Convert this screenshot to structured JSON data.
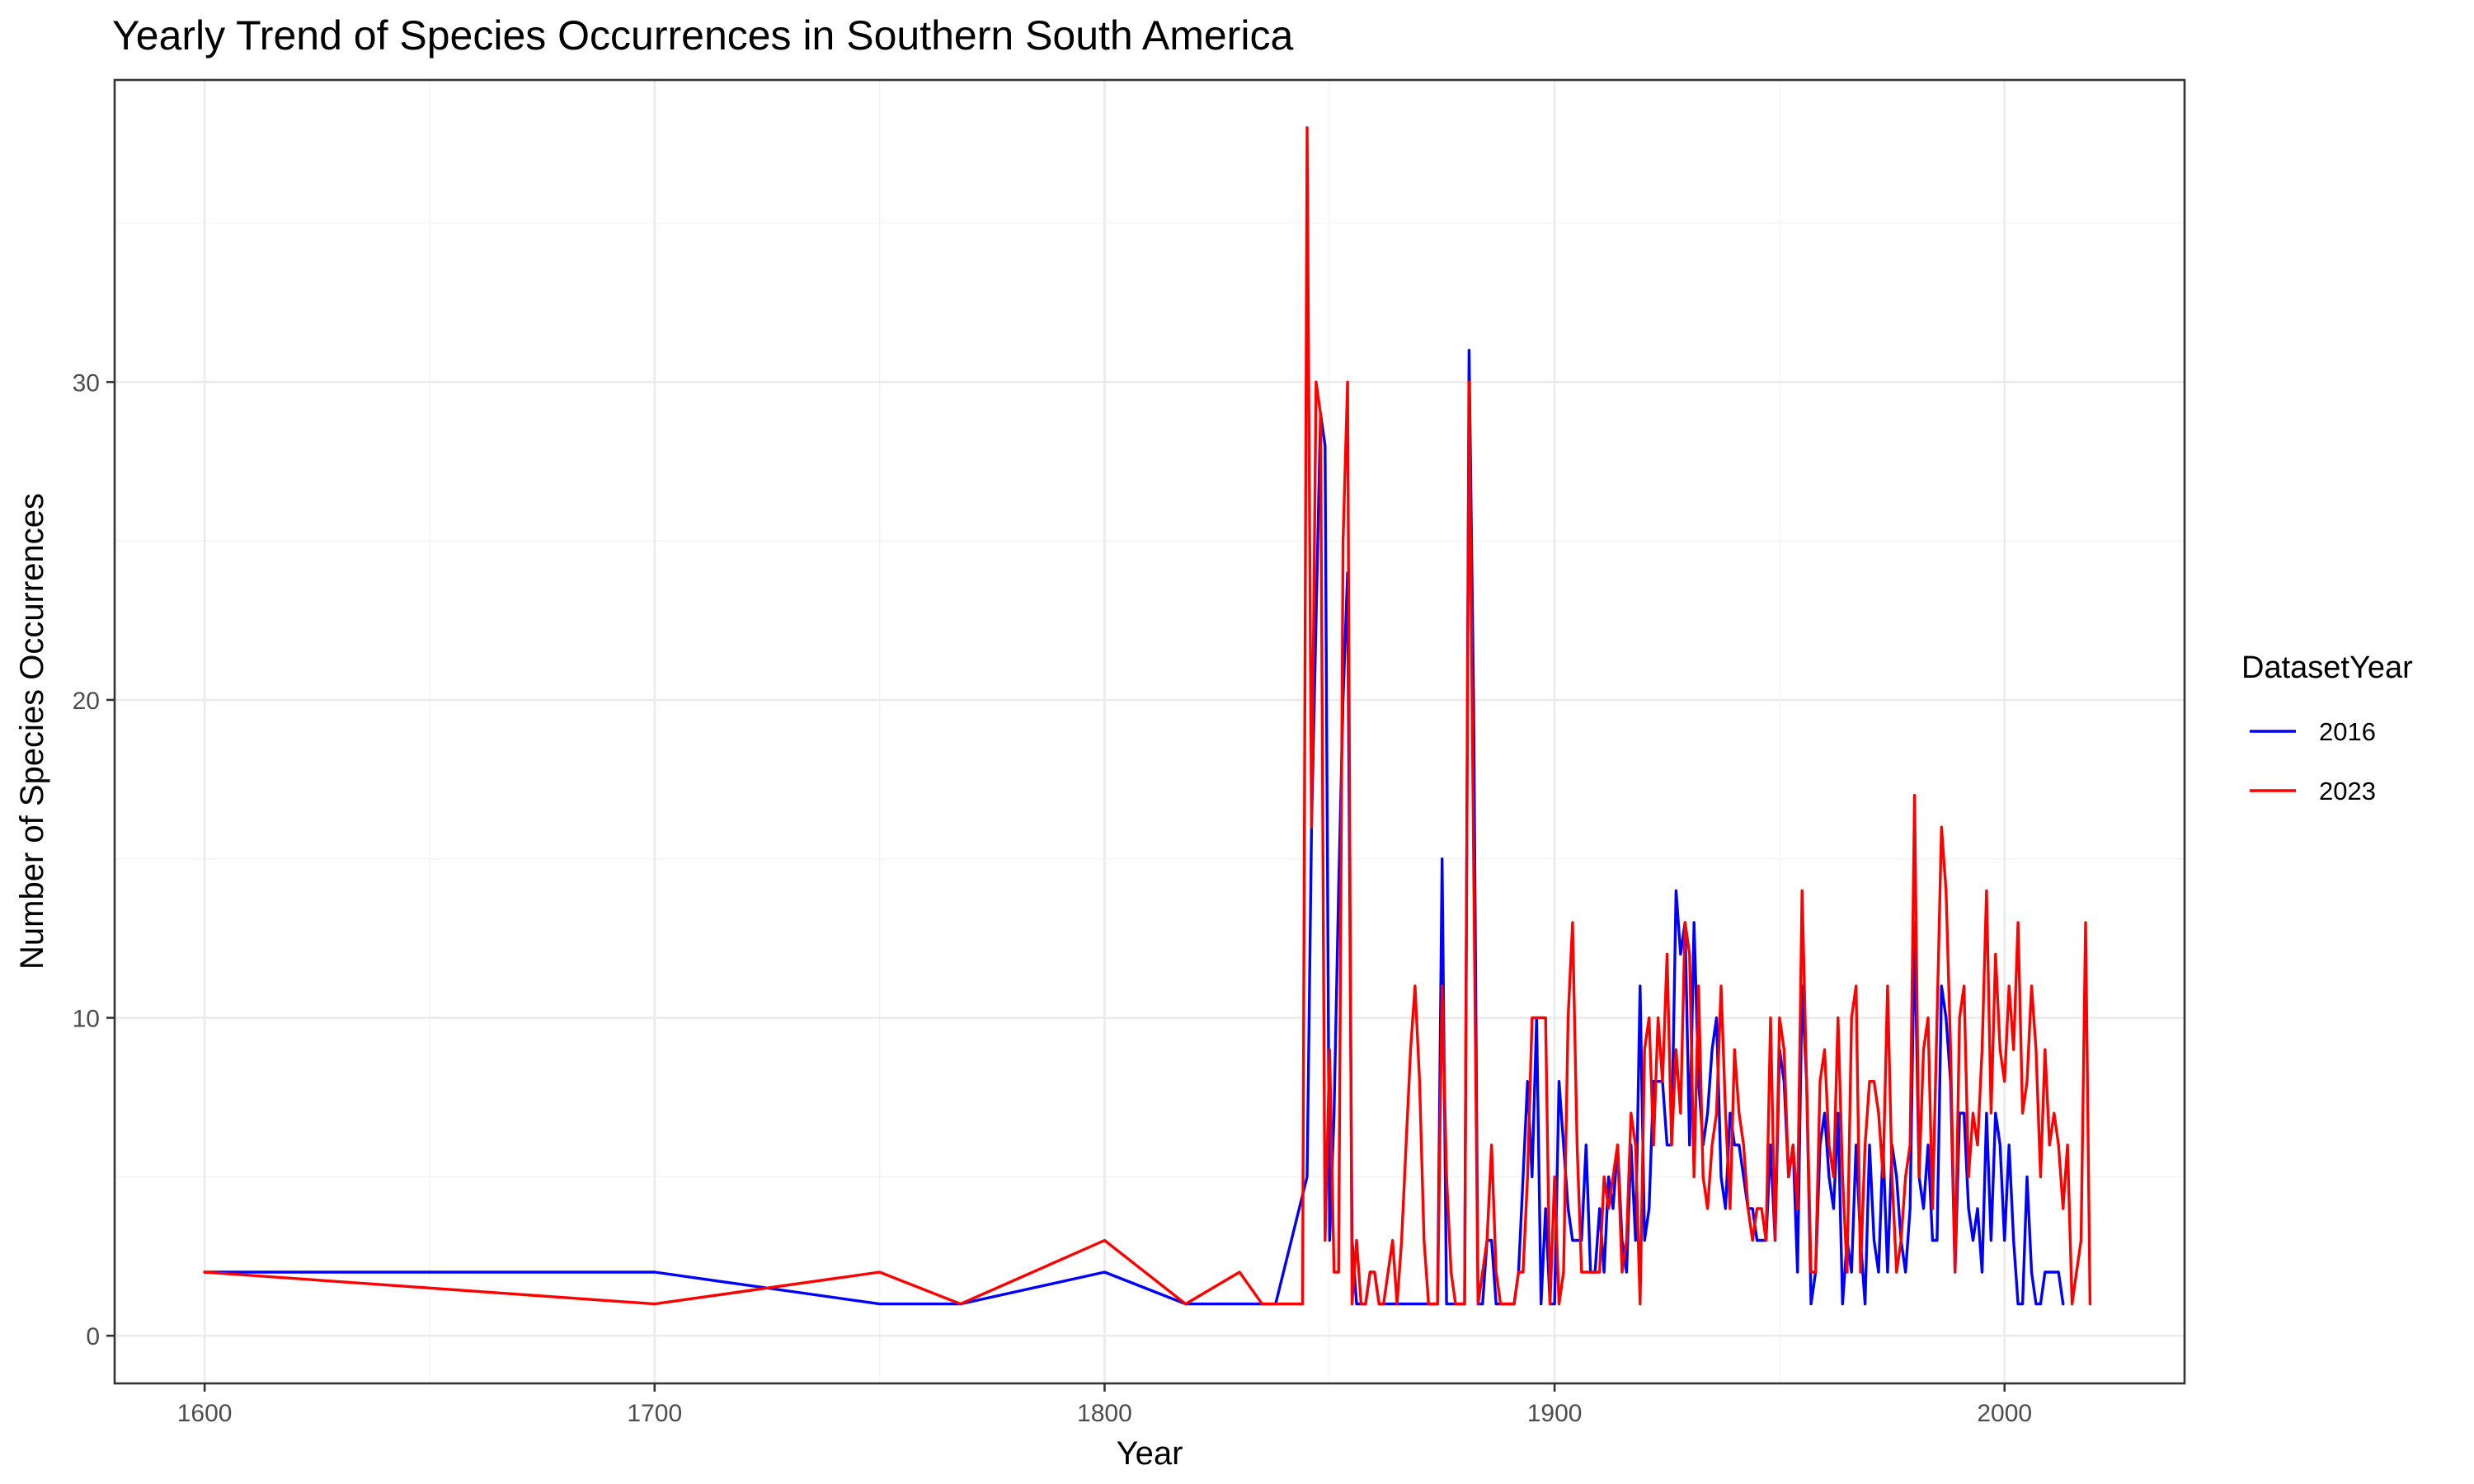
{
  "chart_data": {
    "type": "line",
    "title": "Yearly Trend of Species Occurrences in Southern South America",
    "xlabel": "Year",
    "ylabel": "Number of Species Occurrences",
    "xlim": [
      1580,
      2040
    ],
    "ylim": [
      -1.5,
      39.5
    ],
    "xticks": [
      1600,
      1700,
      1800,
      1900,
      2000
    ],
    "yticks": [
      0,
      10,
      20,
      30
    ],
    "grid": true,
    "legend": {
      "title": "DatasetYear",
      "position": "right"
    },
    "series": [
      {
        "name": "2016",
        "color": "#0000ff",
        "x": [
          1600,
          1700,
          1750,
          1768,
          1800,
          1818,
          1838,
          1845,
          1846,
          1848,
          1849,
          1850,
          1851,
          1852,
          1853,
          1854,
          1855,
          1856,
          1857,
          1858,
          1859,
          1860,
          1861,
          1862,
          1863,
          1864,
          1865,
          1866,
          1867,
          1868,
          1869,
          1870,
          1871,
          1872,
          1873,
          1874,
          1875,
          1876,
          1877,
          1878,
          1879,
          1880,
          1881,
          1882,
          1883,
          1884,
          1885,
          1886,
          1887,
          1888,
          1889,
          1890,
          1891,
          1892,
          1893,
          1894,
          1895,
          1896,
          1897,
          1898,
          1899,
          1900,
          1901,
          1902,
          1903,
          1904,
          1905,
          1906,
          1907,
          1908,
          1909,
          1910,
          1911,
          1912,
          1913,
          1914,
          1915,
          1916,
          1917,
          1918,
          1919,
          1920,
          1921,
          1922,
          1923,
          1924,
          1925,
          1926,
          1927,
          1928,
          1929,
          1930,
          1931,
          1932,
          1933,
          1934,
          1935,
          1936,
          1937,
          1938,
          1939,
          1940,
          1941,
          1942,
          1943,
          1944,
          1945,
          1946,
          1947,
          1948,
          1949,
          1950,
          1951,
          1952,
          1953,
          1954,
          1955,
          1956,
          1957,
          1958,
          1959,
          1960,
          1961,
          1962,
          1963,
          1964,
          1965,
          1966,
          1967,
          1968,
          1969,
          1970,
          1971,
          1972,
          1973,
          1974,
          1975,
          1976,
          1977,
          1978,
          1979,
          1980,
          1981,
          1982,
          1983,
          1984,
          1985,
          1986,
          1987,
          1988,
          1989,
          1990,
          1991,
          1992,
          1993,
          1994,
          1995,
          1996,
          1997,
          1998,
          1999,
          2000,
          2001,
          2002,
          2003,
          2004,
          2005,
          2006,
          2007,
          2008,
          2009,
          2010,
          2011,
          2012,
          2013
        ],
        "y": [
          2,
          2,
          1,
          1,
          2,
          1,
          1,
          5,
          16,
          29,
          28,
          3,
          7,
          14,
          20,
          24,
          3,
          1,
          1,
          1,
          2,
          2,
          1,
          1,
          1,
          1,
          1,
          1,
          1,
          1,
          1,
          1,
          1,
          1,
          1,
          1,
          15,
          1,
          1,
          1,
          1,
          1,
          31,
          20,
          1,
          1,
          3,
          3,
          1,
          1,
          1,
          1,
          1,
          2,
          5,
          8,
          5,
          10,
          1,
          4,
          1,
          1,
          8,
          6,
          4,
          3,
          3,
          3,
          6,
          2,
          2,
          4,
          2,
          5,
          4,
          6,
          3,
          2,
          6,
          3,
          11,
          3,
          4,
          8,
          8,
          8,
          6,
          6,
          14,
          12,
          13,
          6,
          13,
          8,
          6,
          7,
          9,
          10,
          5,
          4,
          7,
          6,
          6,
          5,
          4,
          4,
          3,
          3,
          3,
          6,
          3,
          9,
          8,
          5,
          6,
          2,
          11,
          8,
          1,
          2,
          6,
          7,
          5,
          4,
          7,
          1,
          3,
          2,
          6,
          3,
          1,
          6,
          3,
          2,
          6,
          2,
          6,
          5,
          3,
          2,
          4,
          13,
          5,
          4,
          6,
          3,
          3,
          11,
          10,
          8,
          2,
          7,
          7,
          4,
          3,
          4,
          2,
          7,
          3,
          7,
          6,
          3,
          6,
          3,
          1,
          1,
          5,
          2,
          1,
          1,
          2,
          2,
          2,
          2,
          1
        ]
      },
      {
        "name": "2023",
        "color": "#ff0000",
        "x": [
          1600,
          1700,
          1750,
          1768,
          1800,
          1818,
          1830,
          1835,
          1838,
          1844,
          1845,
          1846,
          1847,
          1848,
          1849,
          1850,
          1851,
          1852,
          1853,
          1854,
          1855,
          1856,
          1857,
          1858,
          1859,
          1860,
          1861,
          1862,
          1863,
          1864,
          1865,
          1866,
          1867,
          1868,
          1869,
          1870,
          1871,
          1872,
          1873,
          1874,
          1875,
          1876,
          1877,
          1878,
          1879,
          1880,
          1881,
          1882,
          1883,
          1884,
          1885,
          1886,
          1887,
          1888,
          1889,
          1890,
          1891,
          1892,
          1893,
          1894,
          1895,
          1896,
          1897,
          1898,
          1899,
          1900,
          1901,
          1902,
          1903,
          1904,
          1905,
          1906,
          1907,
          1908,
          1909,
          1910,
          1911,
          1912,
          1913,
          1914,
          1915,
          1916,
          1917,
          1918,
          1919,
          1920,
          1921,
          1922,
          1923,
          1924,
          1925,
          1926,
          1927,
          1928,
          1929,
          1930,
          1931,
          1932,
          1933,
          1934,
          1935,
          1936,
          1937,
          1938,
          1939,
          1940,
          1941,
          1942,
          1943,
          1944,
          1945,
          1946,
          1947,
          1948,
          1949,
          1950,
          1951,
          1952,
          1953,
          1954,
          1955,
          1956,
          1957,
          1958,
          1959,
          1960,
          1961,
          1962,
          1963,
          1964,
          1965,
          1966,
          1967,
          1968,
          1969,
          1970,
          1971,
          1972,
          1973,
          1974,
          1975,
          1976,
          1977,
          1978,
          1979,
          1980,
          1981,
          1982,
          1983,
          1984,
          1985,
          1986,
          1987,
          1988,
          1989,
          1990,
          1991,
          1992,
          1993,
          1994,
          1995,
          1996,
          1997,
          1998,
          1999,
          2000,
          2001,
          2002,
          2003,
          2004,
          2005,
          2006,
          2007,
          2008,
          2009,
          2010,
          2011,
          2012,
          2013,
          2014,
          2015,
          2016,
          2017,
          2018,
          2019
        ],
        "y": [
          2,
          1,
          2,
          1,
          3,
          1,
          2,
          1,
          1,
          1,
          38,
          16,
          30,
          29,
          3,
          9,
          2,
          2,
          25,
          30,
          1,
          3,
          1,
          1,
          2,
          2,
          1,
          1,
          2,
          3,
          1,
          3,
          6,
          9,
          11,
          8,
          3,
          1,
          1,
          1,
          11,
          5,
          2,
          1,
          1,
          1,
          30,
          15,
          1,
          2,
          3,
          6,
          2,
          1,
          1,
          1,
          1,
          2,
          2,
          5,
          10,
          10,
          10,
          10,
          1,
          5,
          1,
          2,
          10,
          13,
          6,
          2,
          2,
          2,
          2,
          2,
          5,
          4,
          5,
          6,
          2,
          3,
          7,
          6,
          1,
          9,
          10,
          6,
          10,
          8,
          12,
          6,
          9,
          7,
          13,
          12,
          5,
          11,
          5,
          4,
          6,
          7,
          11,
          7,
          4,
          9,
          7,
          6,
          4,
          3,
          4,
          4,
          3,
          10,
          3,
          10,
          9,
          5,
          6,
          4,
          14,
          8,
          2,
          2,
          8,
          9,
          6,
          5,
          10,
          5,
          2,
          10,
          11,
          2,
          6,
          8,
          8,
          7,
          5,
          11,
          5,
          2,
          3,
          5,
          6,
          17,
          5,
          9,
          10,
          4,
          10,
          16,
          14,
          9,
          2,
          10,
          11,
          5,
          7,
          6,
          9,
          14,
          7,
          12,
          9,
          8,
          11,
          9,
          13,
          7,
          8,
          11,
          9,
          5,
          9,
          6,
          7,
          6,
          4,
          6,
          1,
          2,
          3,
          13,
          1
        ]
      }
    ]
  }
}
